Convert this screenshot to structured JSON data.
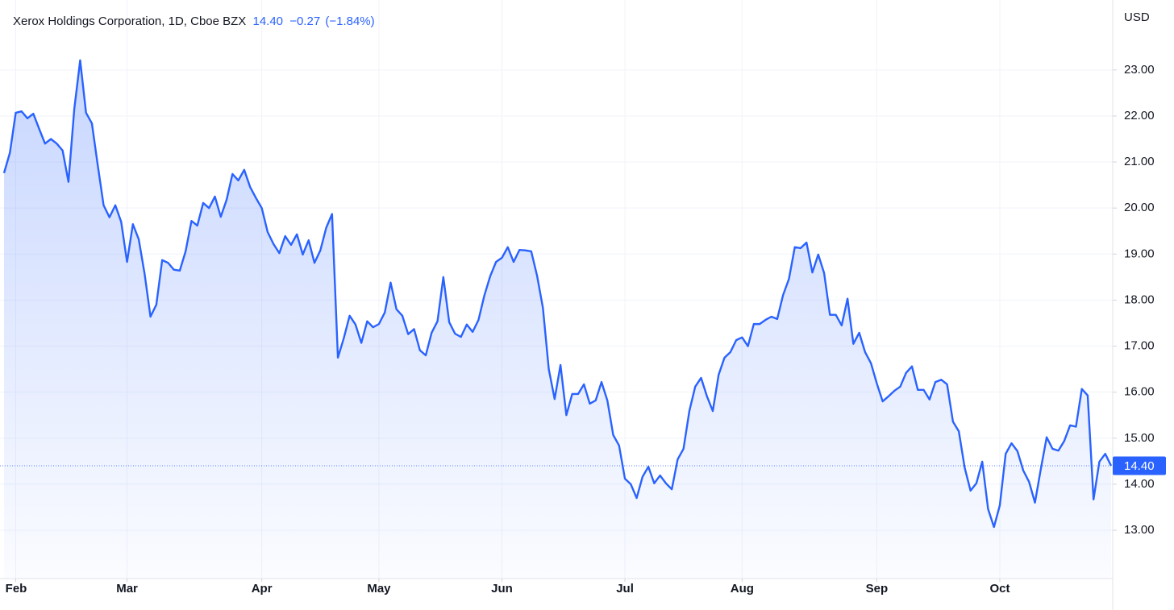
{
  "chart_data": {
    "type": "line",
    "title": "Xerox Holdings Corporation, 1D, Cboe BZX",
    "quote": {
      "last": "14.40",
      "change": "−0.27",
      "change_percent": "(−1.84%)"
    },
    "currency": "USD",
    "color": "#2962ff",
    "grid": true,
    "categories": [
      null,
      null,
      "Feb",
      null,
      null,
      null,
      null,
      null,
      null,
      null,
      null,
      null,
      null,
      null,
      null,
      null,
      null,
      null,
      null,
      null,
      null,
      "Mar",
      null,
      null,
      null,
      null,
      null,
      null,
      null,
      null,
      null,
      null,
      null,
      null,
      null,
      null,
      null,
      null,
      null,
      null,
      null,
      null,
      null,
      null,
      "Apr",
      null,
      null,
      null,
      null,
      null,
      null,
      null,
      null,
      null,
      null,
      null,
      null,
      null,
      null,
      null,
      null,
      null,
      null,
      null,
      "May",
      null,
      null,
      null,
      null,
      null,
      null,
      null,
      null,
      null,
      null,
      null,
      null,
      null,
      null,
      null,
      null,
      null,
      null,
      null,
      null,
      "Jun",
      null,
      null,
      null,
      null,
      null,
      null,
      null,
      null,
      null,
      null,
      null,
      null,
      null,
      null,
      null,
      null,
      null,
      null,
      null,
      null,
      "Jul",
      null,
      null,
      null,
      null,
      null,
      null,
      null,
      null,
      null,
      null,
      null,
      null,
      null,
      null,
      null,
      null,
      null,
      null,
      null,
      "Aug",
      null,
      null,
      null,
      null,
      null,
      null,
      null,
      null,
      null,
      null,
      null,
      null,
      null,
      null,
      null,
      null,
      null,
      null,
      null,
      null,
      null,
      null,
      "Sep",
      null,
      null,
      null,
      null,
      null,
      null,
      null,
      null,
      null,
      null,
      null,
      null,
      null,
      null,
      null,
      null,
      null,
      null,
      null,
      null,
      "Oct",
      null,
      null,
      null,
      null,
      null,
      null,
      null,
      null,
      null,
      null,
      null,
      null,
      null,
      null,
      null,
      null,
      null,
      null,
      null
    ],
    "values": [
      20.76,
      21.2,
      22.07,
      22.1,
      21.95,
      22.05,
      21.72,
      21.4,
      21.5,
      21.4,
      21.25,
      20.57,
      22.16,
      23.21,
      22.07,
      21.84,
      20.93,
      20.06,
      19.8,
      20.06,
      19.7,
      18.83,
      19.65,
      19.32,
      18.57,
      17.64,
      17.9,
      18.87,
      18.81,
      18.66,
      18.64,
      19.06,
      19.72,
      19.62,
      20.11,
      20.0,
      20.25,
      19.81,
      20.18,
      20.74,
      20.6,
      20.83,
      20.46,
      20.22,
      20.0,
      19.48,
      19.22,
      19.02,
      19.39,
      19.2,
      19.43,
      18.99,
      19.3,
      18.81,
      19.08,
      19.57,
      19.87,
      16.75,
      17.17,
      17.66,
      17.47,
      17.07,
      17.54,
      17.41,
      17.48,
      17.73,
      18.38,
      17.8,
      17.66,
      17.26,
      17.37,
      16.91,
      16.8,
      17.29,
      17.54,
      18.5,
      17.52,
      17.27,
      17.2,
      17.47,
      17.31,
      17.57,
      18.1,
      18.52,
      18.83,
      18.92,
      19.15,
      18.83,
      19.09,
      19.08,
      19.06,
      18.53,
      17.83,
      16.5,
      15.85,
      16.59,
      15.5,
      15.96,
      15.96,
      16.17,
      15.75,
      15.82,
      16.22,
      15.82,
      15.07,
      14.84,
      14.12,
      14.0,
      13.7,
      14.16,
      14.38,
      14.02,
      14.19,
      14.02,
      13.89,
      14.54,
      14.77,
      15.59,
      16.12,
      16.31,
      15.91,
      15.59,
      16.38,
      16.75,
      16.87,
      17.13,
      17.19,
      17.0,
      17.48,
      17.48,
      17.57,
      17.64,
      17.59,
      18.11,
      18.46,
      19.15,
      19.13,
      19.25,
      18.6,
      18.99,
      18.59,
      17.68,
      17.68,
      17.45,
      18.03,
      17.05,
      17.29,
      16.87,
      16.63,
      16.19,
      15.8,
      15.91,
      16.03,
      16.12,
      16.42,
      16.56,
      16.05,
      16.05,
      15.84,
      16.22,
      16.27,
      16.17,
      15.36,
      15.15,
      14.36,
      13.86,
      14.02,
      14.49,
      13.46,
      13.07,
      13.54,
      14.66,
      14.89,
      14.72,
      14.3,
      14.05,
      13.6,
      14.33,
      15.02,
      14.77,
      14.73,
      14.94,
      15.28,
      15.25,
      16.07,
      15.93,
      13.67,
      14.49,
      14.66,
      14.4
    ],
    "ylim": [
      11.95,
      24.52
    ],
    "yticks": [
      {
        "value": 13,
        "label": "13.00"
      },
      {
        "value": 14,
        "label": "14.00"
      },
      {
        "value": 15,
        "label": "15.00"
      },
      {
        "value": 16,
        "label": "16.00"
      },
      {
        "value": 17,
        "label": "17.00"
      },
      {
        "value": 18,
        "label": "18.00"
      },
      {
        "value": 19,
        "label": "19.00"
      },
      {
        "value": 20,
        "label": "20.00"
      },
      {
        "value": 21,
        "label": "21.00"
      },
      {
        "value": 22,
        "label": "22.00"
      },
      {
        "value": 23,
        "label": "23.00"
      }
    ],
    "last_price": {
      "value": 14.4,
      "label": "14.40"
    }
  }
}
